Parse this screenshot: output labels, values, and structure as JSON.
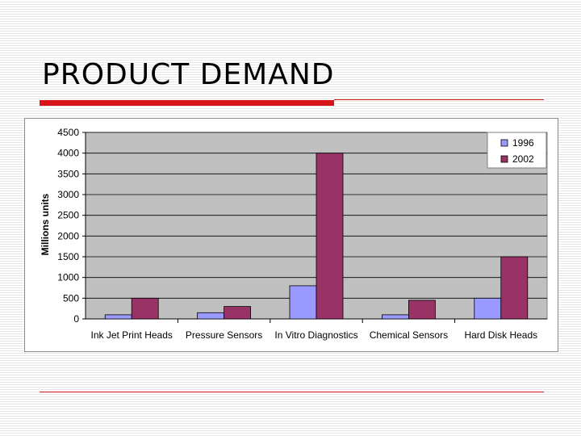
{
  "slide": {
    "title": "PRODUCT DEMAND"
  },
  "chart_data": {
    "type": "bar",
    "ylabel": "Millions units",
    "xlabel": "",
    "ylim": [
      0,
      4500
    ],
    "yticks": [
      0,
      500,
      1000,
      1500,
      2000,
      2500,
      3000,
      3500,
      4000,
      4500
    ],
    "grid": true,
    "legend_position": "top-right",
    "categories": [
      "Ink Jet Print Heads",
      "Pressure Sensors",
      "In Vitro Diagnostics",
      "Chemical Sensors",
      "Hard Disk Heads"
    ],
    "series": [
      {
        "name": "1996",
        "color": "#9999ff",
        "values": [
          100,
          150,
          800,
          100,
          500
        ]
      },
      {
        "name": "2002",
        "color": "#993366",
        "values": [
          500,
          300,
          4000,
          450,
          1500
        ]
      }
    ],
    "plot_background": "#c0c0c0"
  }
}
